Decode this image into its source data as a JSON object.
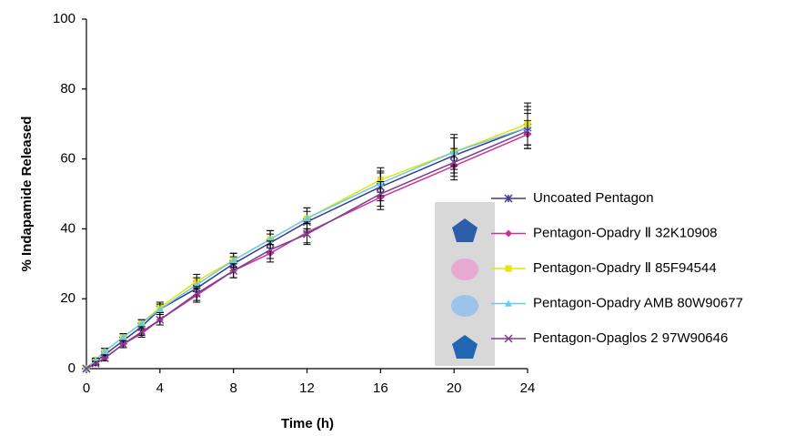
{
  "chart_data": {
    "type": "line",
    "x_label": "Time (h)",
    "y_label": "% Indapamide Released",
    "x": [
      0,
      0.5,
      1,
      2,
      3,
      4,
      6,
      8,
      10,
      12,
      16,
      20,
      24
    ],
    "series": [
      {
        "name": "Uncoated Pentagon",
        "color": "#3b3b8f",
        "marker": "star",
        "values": [
          0,
          2,
          4,
          8,
          12,
          17,
          23,
          30,
          36,
          42,
          52,
          61,
          69
        ],
        "errors": [
          0,
          0.5,
          0.8,
          1,
          1,
          1.5,
          2,
          2,
          2.5,
          3,
          4,
          5,
          6
        ]
      },
      {
        "name": "Pentagon-Opadry Ⅱ 32K10908",
        "color": "#cc3399",
        "marker": "diamond",
        "values": [
          0,
          1.5,
          3,
          7,
          10,
          14,
          21,
          28,
          33,
          39,
          49,
          58,
          67
        ],
        "errors": [
          0,
          0.5,
          0.8,
          1,
          1,
          1.5,
          2,
          2,
          2.5,
          3,
          3.5,
          4,
          4
        ]
      },
      {
        "name": "Pentagon-Opadry Ⅱ 85F94544",
        "color": "#e6e600",
        "marker": "square",
        "values": [
          0,
          2.5,
          5,
          9,
          13,
          17.5,
          25,
          31,
          37,
          43,
          54,
          62,
          70
        ],
        "errors": [
          0,
          0.5,
          0.8,
          1,
          1,
          1.5,
          2,
          2,
          2.5,
          3,
          3.5,
          5,
          6
        ]
      },
      {
        "name": "Pentagon-Opadry AMB 80W90677",
        "color": "#66ccee",
        "marker": "triangle",
        "values": [
          0,
          2.5,
          5,
          9,
          13,
          17,
          24,
          31,
          37,
          43,
          53,
          62,
          69
        ],
        "errors": [
          0,
          0.5,
          0.8,
          1,
          1,
          1.5,
          2,
          2,
          2.5,
          3,
          3.5,
          4,
          5
        ]
      },
      {
        "name": "Pentagon-Opaglos 2 97W90646",
        "color": "#7a3d8f",
        "marker": "x",
        "values": [
          0,
          1.5,
          3,
          7,
          10.5,
          14,
          21.5,
          28,
          34,
          38.5,
          50,
          59,
          68
        ],
        "errors": [
          0,
          0.5,
          0.8,
          1,
          1,
          1.5,
          2,
          2,
          2.5,
          3,
          3.5,
          4,
          5
        ]
      }
    ],
    "xlim": [
      0,
      24
    ],
    "xticks": [
      0,
      4,
      8,
      12,
      16,
      20,
      24
    ],
    "ylim": [
      0,
      100
    ],
    "yticks": [
      0,
      20,
      40,
      60,
      80,
      100
    ],
    "grid": false,
    "legend": "right"
  }
}
